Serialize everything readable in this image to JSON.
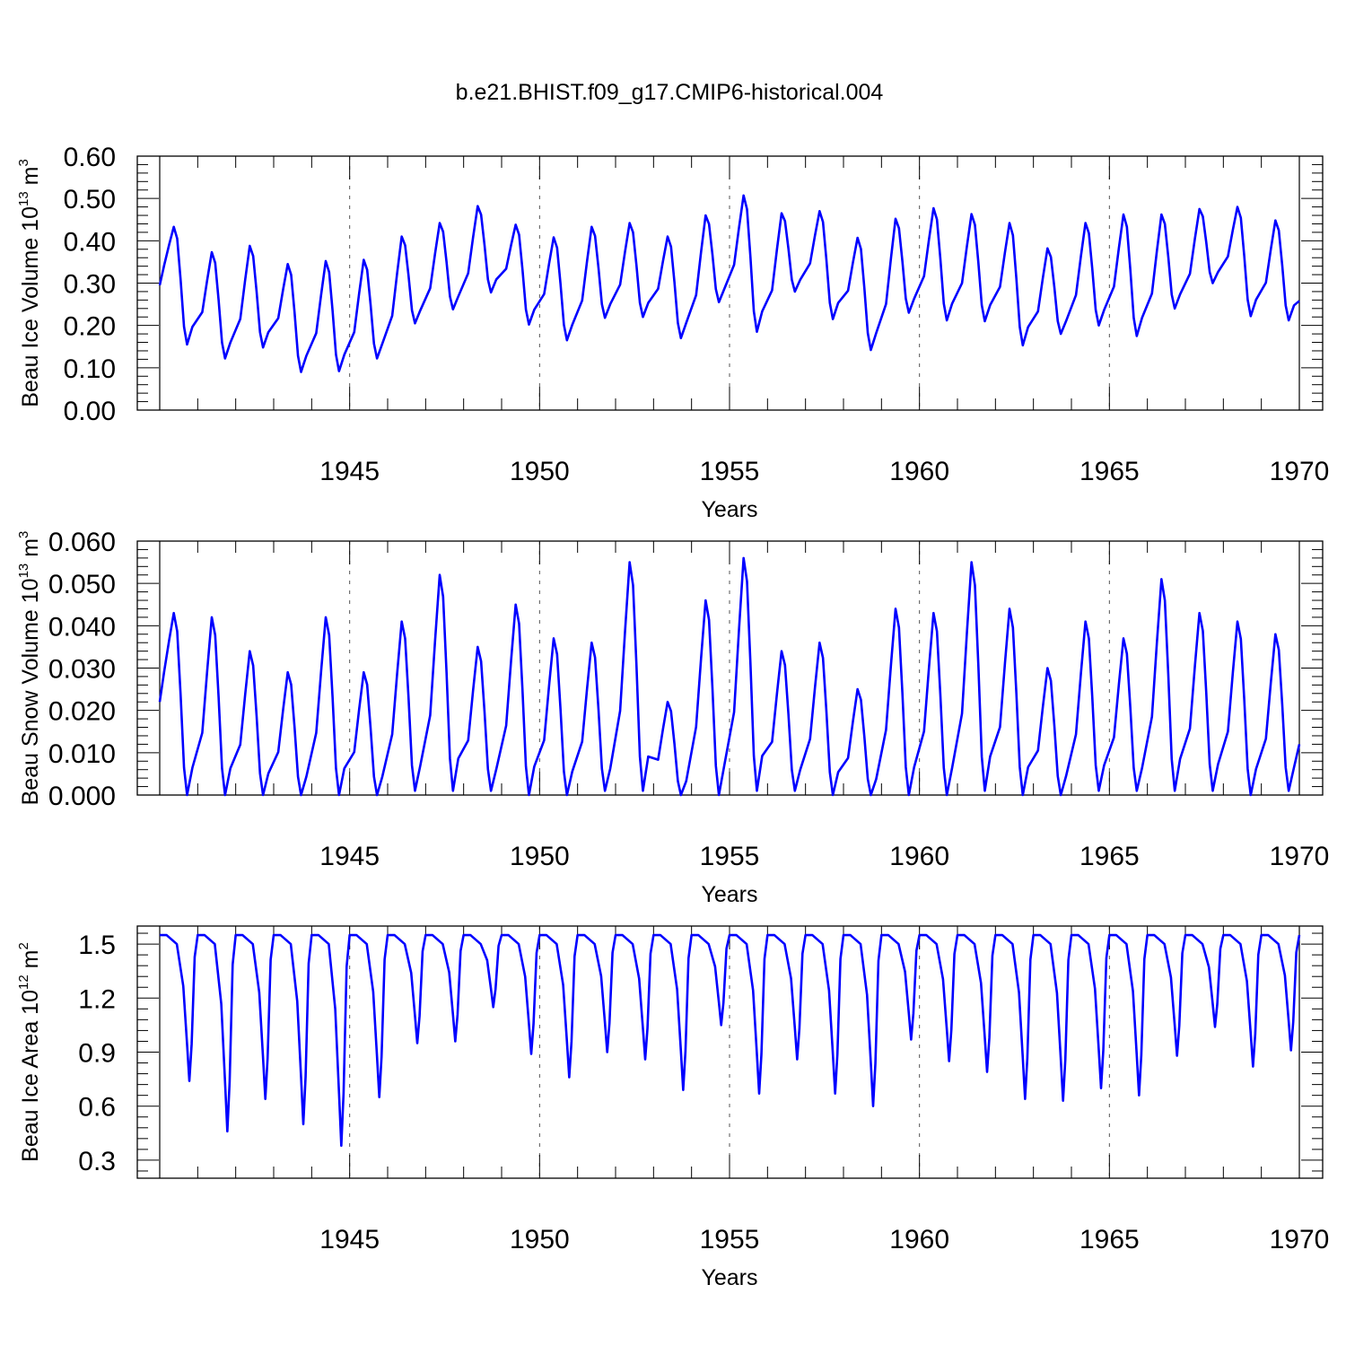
{
  "figure": {
    "title": "b.e21.BHIST.f09_g17.CMIP6-historical.004",
    "line_color": "#0000ff",
    "grid_color": "#555555"
  },
  "chart_data": [
    {
      "type": "line",
      "ylabel": "Beau Ice Volume",
      "ylabel_unit_base": "10",
      "ylabel_unit_exp": "13",
      "ylabel_unit_var": "m",
      "ylabel_unit_var_exp": "3",
      "xlabel": "Years",
      "xlim": [
        1940.0,
        1970.0
      ],
      "ylim": [
        0.0,
        0.6
      ],
      "x_ticks": [
        1945,
        1950,
        1955,
        1960,
        1965,
        1970
      ],
      "x_tick_labels": [
        "1945",
        "1950",
        "1955",
        "1960",
        "1965",
        "1970"
      ],
      "y_ticks": [
        0.0,
        0.1,
        0.2,
        0.3,
        0.4,
        0.5,
        0.6
      ],
      "y_tick_labels": [
        "0.00",
        "0.10",
        "0.20",
        "0.30",
        "0.40",
        "0.50",
        "0.60"
      ],
      "minima": [
        0.155,
        0.122,
        0.148,
        0.09,
        0.092,
        0.122,
        0.205,
        0.238,
        0.278,
        0.202,
        0.165,
        0.218,
        0.22,
        0.17,
        0.255,
        0.185,
        0.28,
        0.215,
        0.142,
        0.23,
        0.212,
        0.21,
        0.153,
        0.18,
        0.2,
        0.175,
        0.24,
        0.3,
        0.222,
        0.212
      ],
      "maxima": [
        0.433,
        0.373,
        0.388,
        0.345,
        0.352,
        0.355,
        0.41,
        0.442,
        0.482,
        0.438,
        0.408,
        0.433,
        0.442,
        0.41,
        0.46,
        0.507,
        0.465,
        0.47,
        0.407,
        0.452,
        0.477,
        0.463,
        0.442,
        0.382,
        0.442,
        0.462,
        0.462,
        0.475,
        0.48,
        0.448
      ],
      "start_value": 0.295,
      "end_value": 0.258
    },
    {
      "type": "line",
      "ylabel": "Beau Snow Volume",
      "ylabel_unit_base": "10",
      "ylabel_unit_exp": "13",
      "ylabel_unit_var": "m",
      "ylabel_unit_var_exp": "3",
      "xlabel": "Years",
      "xlim": [
        1940.0,
        1970.0
      ],
      "ylim": [
        0.0,
        0.06
      ],
      "x_ticks": [
        1945,
        1950,
        1955,
        1960,
        1965,
        1970
      ],
      "x_tick_labels": [
        "1945",
        "1950",
        "1955",
        "1960",
        "1965",
        "1970"
      ],
      "y_ticks": [
        0.0,
        0.01,
        0.02,
        0.03,
        0.04,
        0.05,
        0.06
      ],
      "y_tick_labels": [
        "0.000",
        "0.010",
        "0.020",
        "0.030",
        "0.040",
        "0.050",
        "0.060"
      ],
      "minima": [
        0.0,
        0.0,
        0.0,
        0.0,
        0.0,
        0.0,
        0.001,
        0.001,
        0.001,
        0.0,
        0.0,
        0.001,
        0.001,
        0.0,
        0.0,
        0.001,
        0.001,
        0.0,
        0.0,
        0.0,
        0.0,
        0.001,
        0.0,
        0.0,
        0.001,
        0.001,
        0.001,
        0.001,
        0.0,
        0.001
      ],
      "maxima": [
        0.043,
        0.042,
        0.034,
        0.029,
        0.042,
        0.029,
        0.041,
        0.052,
        0.035,
        0.045,
        0.037,
        0.036,
        0.055,
        0.022,
        0.046,
        0.056,
        0.034,
        0.036,
        0.025,
        0.044,
        0.043,
        0.055,
        0.044,
        0.03,
        0.041,
        0.037,
        0.051,
        0.043,
        0.041,
        0.038
      ],
      "start_value": 0.022,
      "end_value": 0.012
    },
    {
      "type": "line",
      "ylabel": "Beau Ice Area",
      "ylabel_unit_base": "10",
      "ylabel_unit_exp": "12",
      "ylabel_unit_var": "m",
      "ylabel_unit_var_exp": "2",
      "xlabel": "Years",
      "xlim": [
        1940.0,
        1970.0
      ],
      "ylim": [
        0.2,
        1.6
      ],
      "x_ticks": [
        1945,
        1950,
        1955,
        1960,
        1965,
        1970
      ],
      "x_tick_labels": [
        "1945",
        "1950",
        "1955",
        "1960",
        "1965",
        "1970"
      ],
      "y_ticks": [
        0.3,
        0.6,
        0.9,
        1.2,
        1.5
      ],
      "y_tick_labels": [
        "0.3",
        "0.6",
        "0.9",
        "1.2",
        "1.5"
      ],
      "plateau": 1.55,
      "minima": [
        0.74,
        0.46,
        0.64,
        0.5,
        0.38,
        0.65,
        0.95,
        0.96,
        1.15,
        0.89,
        0.76,
        0.9,
        0.86,
        0.69,
        1.05,
        0.67,
        0.86,
        0.67,
        0.6,
        0.97,
        0.85,
        0.79,
        0.64,
        0.63,
        0.7,
        0.66,
        0.88,
        1.04,
        0.82,
        0.91
      ],
      "start_value": 1.55,
      "end_value": 1.55
    }
  ]
}
